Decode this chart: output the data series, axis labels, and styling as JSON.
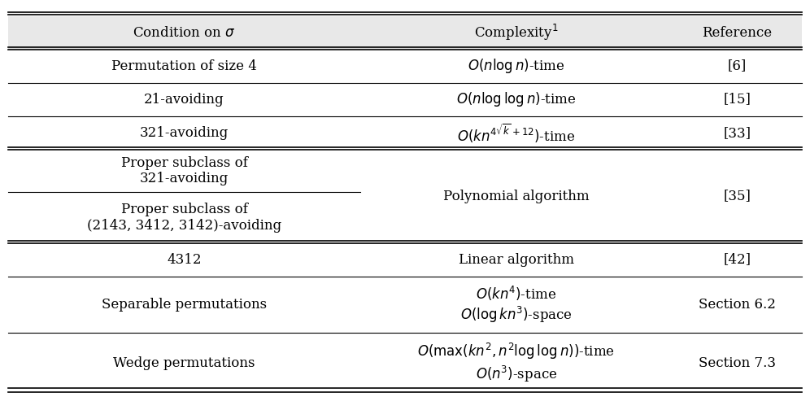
{
  "figsize": [
    9.96,
    4.88
  ],
  "dpi": 100,
  "background": "#ffffff",
  "col_splits": [
    0.0,
    0.455,
    0.82,
    1.0
  ],
  "font_size": 12,
  "header_bg": "#e8e8e8"
}
